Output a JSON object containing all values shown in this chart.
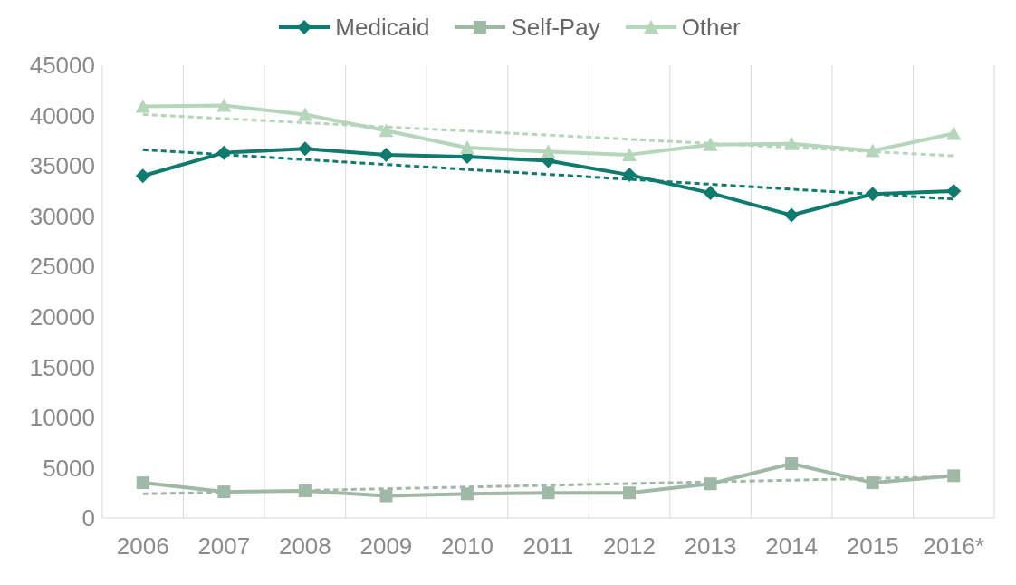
{
  "chart_data": {
    "type": "line",
    "categories": [
      "2006",
      "2007",
      "2008",
      "2009",
      "2010",
      "2011",
      "2012",
      "2013",
      "2014",
      "2015",
      "2016*"
    ],
    "series": [
      {
        "name": "Medicaid",
        "color": "#0e7b6e",
        "marker": "diamond",
        "values": [
          34000,
          36300,
          36700,
          36100,
          35900,
          35500,
          34100,
          32300,
          30100,
          32200,
          32500
        ]
      },
      {
        "name": "Self-Pay",
        "color": "#a0b8a6",
        "marker": "square",
        "values": [
          3500,
          2600,
          2700,
          2200,
          2400,
          2500,
          2500,
          3400,
          5400,
          3500,
          4200
        ]
      },
      {
        "name": "Other",
        "color": "#b5d6bb",
        "marker": "triangle",
        "values": [
          40900,
          41000,
          40100,
          38500,
          36800,
          36400,
          36100,
          37100,
          37200,
          36500,
          38200
        ]
      },
      {
        "type": "line",
        "color": "#0e7b6e",
        "line_style": "dashed",
        "marker": "none",
        "values": [
          36600,
          null,
          null,
          null,
          null,
          null,
          null,
          null,
          null,
          null,
          31700
        ]
      },
      {
        "type": "line",
        "color": "#a0b8a6",
        "line_style": "dashed",
        "marker": "none",
        "values": [
          2400,
          null,
          null,
          null,
          null,
          null,
          null,
          null,
          null,
          null,
          4100
        ]
      },
      {
        "type": "line",
        "color": "#b5d6bb",
        "line_style": "dashed",
        "marker": "none",
        "values": [
          40100,
          null,
          null,
          null,
          null,
          null,
          null,
          null,
          null,
          null,
          36000
        ]
      }
    ],
    "ylim": [
      0,
      45000
    ],
    "yticks": [
      0,
      5000,
      10000,
      15000,
      20000,
      25000,
      30000,
      35000,
      40000,
      45000
    ],
    "grid": "x",
    "legend": "top"
  }
}
